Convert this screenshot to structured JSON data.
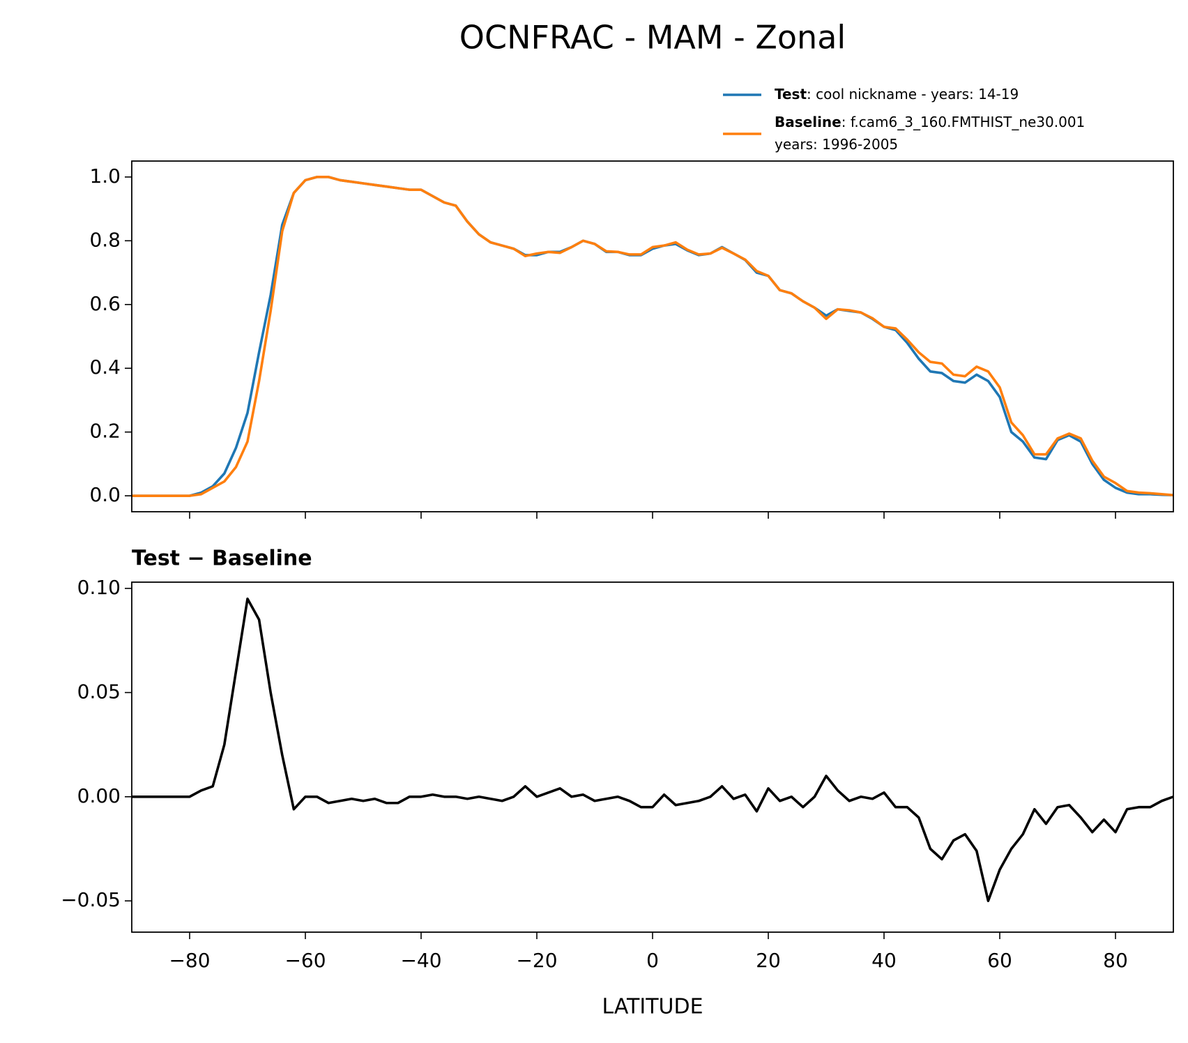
{
  "chart_data": [
    {
      "type": "line",
      "title": "OCNFRAC - MAM - Zonal",
      "x": [
        -90,
        -88,
        -86,
        -84,
        -82,
        -80,
        -78,
        -76,
        -74,
        -72,
        -70,
        -68,
        -66,
        -64,
        -62,
        -60,
        -58,
        -56,
        -54,
        -52,
        -50,
        -48,
        -46,
        -44,
        -42,
        -40,
        -38,
        -36,
        -34,
        -32,
        -30,
        -28,
        -26,
        -24,
        -22,
        -20,
        -18,
        -16,
        -14,
        -12,
        -10,
        -8,
        -6,
        -4,
        -2,
        0,
        2,
        4,
        6,
        8,
        10,
        12,
        14,
        16,
        18,
        20,
        22,
        24,
        26,
        28,
        30,
        32,
        34,
        36,
        38,
        40,
        42,
        44,
        46,
        48,
        50,
        52,
        54,
        56,
        58,
        60,
        62,
        64,
        66,
        68,
        70,
        72,
        74,
        76,
        78,
        80,
        82,
        84,
        86,
        88,
        90
      ],
      "series": [
        {
          "name": "Test",
          "detail": [
            ": cool nickname - years: 14-19"
          ],
          "color": "#1f77b4",
          "values": [
            0,
            0,
            0,
            0,
            0,
            0,
            0.01,
            0.03,
            0.07,
            0.15,
            0.26,
            0.45,
            0.63,
            0.85,
            0.95,
            0.99,
            1.0,
            1.0,
            0.99,
            0.985,
            0.98,
            0.975,
            0.97,
            0.965,
            0.96,
            0.96,
            0.94,
            0.92,
            0.91,
            0.86,
            0.82,
            0.795,
            0.785,
            0.775,
            0.755,
            0.755,
            0.765,
            0.765,
            0.78,
            0.8,
            0.79,
            0.765,
            0.765,
            0.755,
            0.755,
            0.775,
            0.785,
            0.79,
            0.77,
            0.755,
            0.76,
            0.78,
            0.76,
            0.74,
            0.7,
            0.69,
            0.645,
            0.635,
            0.61,
            0.59,
            0.565,
            0.585,
            0.58,
            0.575,
            0.555,
            0.53,
            0.52,
            0.48,
            0.43,
            0.39,
            0.385,
            0.36,
            0.355,
            0.38,
            0.36,
            0.31,
            0.2,
            0.17,
            0.12,
            0.115,
            0.175,
            0.19,
            0.17,
            0.1,
            0.05,
            0.025,
            0.01,
            0.005,
            0.005,
            0.003,
            0.002
          ]
        },
        {
          "name": "Baseline",
          "detail": [
            ": f.cam6_3_160.FMTHIST_ne30.001",
            "years: 1996-2005"
          ],
          "color": "#ff7f0e",
          "values": [
            0,
            0,
            0,
            0,
            0,
            0,
            0.005,
            0.025,
            0.045,
            0.09,
            0.17,
            0.36,
            0.58,
            0.83,
            0.95,
            0.99,
            1.0,
            1.0,
            0.99,
            0.985,
            0.98,
            0.975,
            0.97,
            0.965,
            0.96,
            0.96,
            0.94,
            0.92,
            0.91,
            0.86,
            0.82,
            0.795,
            0.785,
            0.775,
            0.752,
            0.76,
            0.765,
            0.762,
            0.78,
            0.8,
            0.79,
            0.767,
            0.765,
            0.757,
            0.757,
            0.78,
            0.785,
            0.795,
            0.772,
            0.757,
            0.76,
            0.778,
            0.76,
            0.741,
            0.705,
            0.69,
            0.645,
            0.635,
            0.61,
            0.59,
            0.555,
            0.585,
            0.582,
            0.575,
            0.557,
            0.53,
            0.525,
            0.49,
            0.45,
            0.42,
            0.415,
            0.38,
            0.375,
            0.405,
            0.39,
            0.34,
            0.23,
            0.19,
            0.13,
            0.13,
            0.18,
            0.195,
            0.18,
            0.11,
            0.06,
            0.04,
            0.015,
            0.01,
            0.008,
            0.005,
            0.002
          ]
        }
      ],
      "xlim": [
        -90,
        90
      ],
      "xticks": [
        -80,
        -60,
        -40,
        -20,
        0,
        20,
        40,
        60,
        80
      ],
      "xtick_labels": false,
      "ylim": [
        -0.05,
        1.05
      ],
      "yticks": [
        {
          "value": 0,
          "label": "0.0"
        },
        {
          "value": 0.2,
          "label": "0.2"
        },
        {
          "value": 0.4,
          "label": "0.4"
        },
        {
          "value": 0.6,
          "label": "0.6"
        },
        {
          "value": 0.8,
          "label": "0.8"
        },
        {
          "value": 1,
          "label": "1.0"
        }
      ],
      "grid": false,
      "legend": "above-right"
    },
    {
      "type": "line",
      "subtitle": "Test − Baseline",
      "xlabel": "LATITUDE",
      "x": [
        -90,
        -88,
        -86,
        -84,
        -82,
        -80,
        -78,
        -76,
        -74,
        -72,
        -70,
        -68,
        -66,
        -64,
        -62,
        -60,
        -58,
        -56,
        -54,
        -52,
        -50,
        -48,
        -46,
        -44,
        -42,
        -40,
        -38,
        -36,
        -34,
        -32,
        -30,
        -28,
        -26,
        -24,
        -22,
        -20,
        -18,
        -16,
        -14,
        -12,
        -10,
        -8,
        -6,
        -4,
        -2,
        0,
        2,
        4,
        6,
        8,
        10,
        12,
        14,
        16,
        18,
        20,
        22,
        24,
        26,
        28,
        30,
        32,
        34,
        36,
        38,
        40,
        42,
        44,
        46,
        48,
        50,
        52,
        54,
        56,
        58,
        60,
        62,
        64,
        66,
        68,
        70,
        72,
        74,
        76,
        78,
        80,
        82,
        84,
        86,
        88,
        90
      ],
      "series": [
        {
          "name": "Test − Baseline",
          "color": "#000000",
          "values": [
            0,
            0,
            0,
            0,
            0,
            0,
            0.003,
            0.005,
            0.025,
            0.06,
            0.095,
            0.085,
            0.05,
            0.02,
            -0.006,
            0,
            0,
            -0.003,
            -0.002,
            -0.001,
            -0.002,
            -0.001,
            -0.003,
            -0.003,
            0,
            0,
            0.001,
            0,
            0,
            -0.001,
            0,
            -0.001,
            -0.002,
            0,
            0.005,
            0,
            0.002,
            0.004,
            0,
            0.001,
            -0.002,
            -0.001,
            0,
            -0.002,
            -0.005,
            -0.005,
            0.001,
            -0.004,
            -0.003,
            -0.002,
            0,
            0.005,
            -0.001,
            0.001,
            -0.007,
            0.004,
            -0.002,
            0,
            -0.005,
            0,
            0.01,
            0.003,
            -0.002,
            0,
            -0.001,
            0.002,
            -0.005,
            -0.005,
            -0.01,
            -0.025,
            -0.03,
            -0.021,
            -0.018,
            -0.026,
            -0.05,
            -0.035,
            -0.025,
            -0.018,
            -0.006,
            -0.013,
            -0.005,
            -0.004,
            -0.01,
            -0.017,
            -0.011,
            -0.017,
            -0.006,
            -0.005,
            -0.005,
            -0.002,
            0
          ]
        }
      ],
      "xlim": [
        -90,
        90
      ],
      "xticks": [
        {
          "value": -80,
          "label": "−80"
        },
        {
          "value": -60,
          "label": "−60"
        },
        {
          "value": -40,
          "label": "−40"
        },
        {
          "value": -20,
          "label": "−20"
        },
        0,
        20,
        40,
        60,
        80
      ],
      "ylim": [
        -0.065,
        0.103
      ],
      "yticks": [
        {
          "value": -0.05,
          "label": "−0.05"
        },
        {
          "value": 0,
          "label": "0.00"
        },
        {
          "value": 0.05,
          "label": "0.05"
        },
        {
          "value": 0.1,
          "label": "0.10"
        }
      ],
      "grid": false
    }
  ]
}
